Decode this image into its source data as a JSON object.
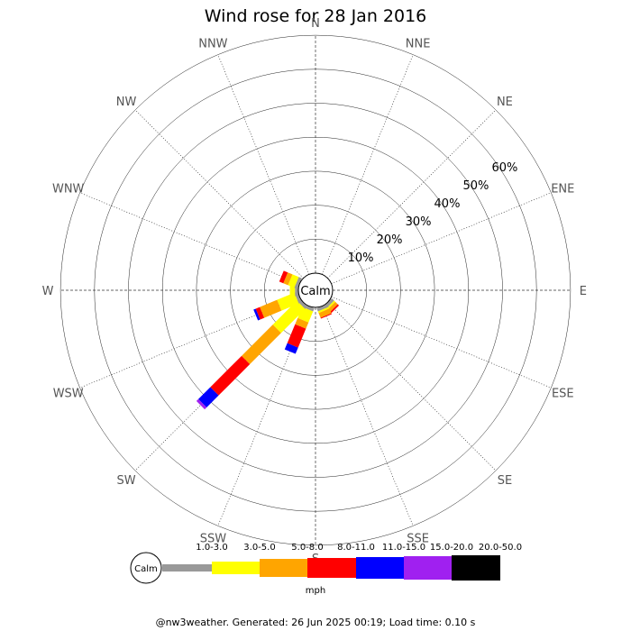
{
  "chart_data": {
    "type": "wind-rose",
    "title": "Wind rose for 28 Jan 2016",
    "calm_label": "Calm",
    "directions": [
      "N",
      "NNE",
      "NE",
      "ENE",
      "E",
      "ESE",
      "SE",
      "SSE",
      "S",
      "SSW",
      "SW",
      "WSW",
      "W",
      "WNW",
      "NW",
      "NNW"
    ],
    "radial_ticks": [
      "10%",
      "20%",
      "30%",
      "40%",
      "50%",
      "60%"
    ],
    "radial_values": [
      10,
      20,
      30,
      40,
      50,
      60
    ],
    "radial_max": 70,
    "units": "mph",
    "speed_bins": [
      {
        "label": "1.0-3.0",
        "color": "#999999"
      },
      {
        "label": "3.0-5.0",
        "color": "#ffff00"
      },
      {
        "label": "5.0-8.0",
        "color": "#ffa500"
      },
      {
        "label": "8.0-11.0",
        "color": "#ff0000"
      },
      {
        "label": "11.0-15.0",
        "color": "#0000ff"
      },
      {
        "label": "15.0-20.0",
        "color": "#a020f0"
      },
      {
        "label": "20.0-50.0",
        "color": "#000000"
      }
    ],
    "series": [
      {
        "direction": "SE",
        "values": [
          1.0,
          0.5,
          1.0,
          0.5,
          0,
          0,
          0
        ]
      },
      {
        "direction": "SSE",
        "values": [
          1.0,
          0.5,
          1.5,
          0.3,
          0,
          0,
          0
        ]
      },
      {
        "direction": "SSW",
        "values": [
          1.0,
          3.5,
          2.0,
          6.0,
          2.0,
          0,
          0
        ]
      },
      {
        "direction": "SW",
        "values": [
          1.0,
          10.0,
          13.0,
          13.0,
          5.0,
          0.8,
          0
        ]
      },
      {
        "direction": "WSW",
        "values": [
          1.0,
          5.5,
          5.5,
          1.3,
          0.7,
          0,
          0
        ]
      },
      {
        "direction": "W",
        "values": [
          1.0,
          1.5,
          0,
          0,
          0,
          0,
          0
        ]
      },
      {
        "direction": "WNW",
        "values": [
          1.0,
          2.0,
          1.5,
          1.3,
          0,
          0,
          0
        ]
      }
    ]
  },
  "footer": "@nw3weather. Generated: 26 Jun 2025 00:19; Load time: 0.10 s"
}
